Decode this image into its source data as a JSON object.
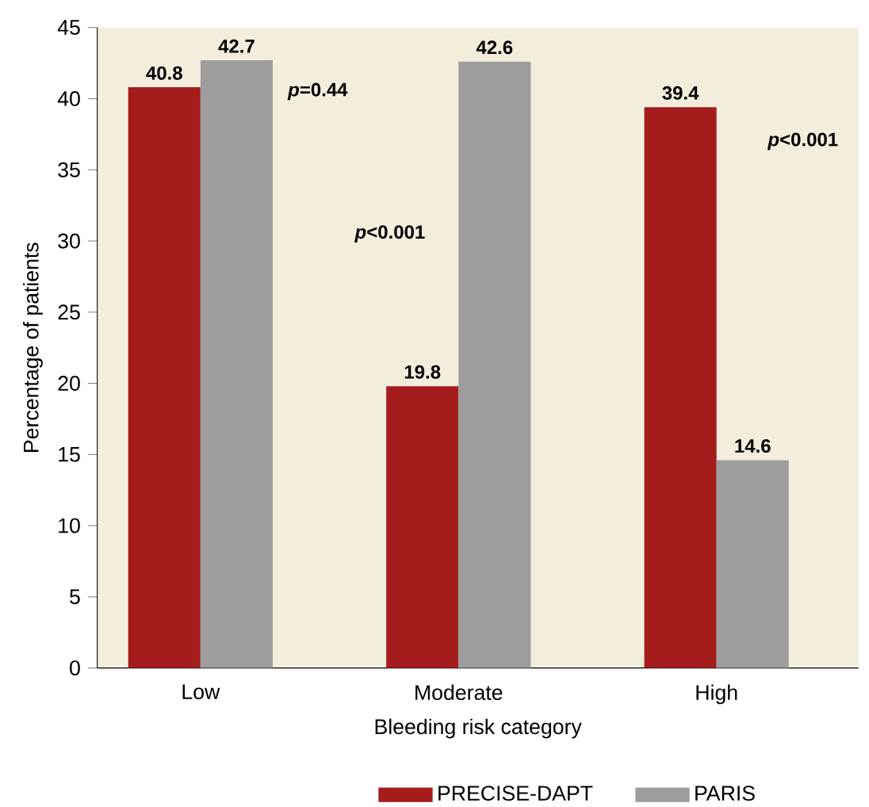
{
  "chart_data": {
    "type": "bar",
    "xlabel": "Bleeding risk category",
    "ylabel": "Percentage of patients",
    "categories": [
      "Low",
      "Moderate",
      "High"
    ],
    "series": [
      {
        "name": "PRECISE-DAPT",
        "color": "#a51c1c",
        "values": [
          40.8,
          19.8,
          39.4
        ]
      },
      {
        "name": "PARIS",
        "color": "#9d9d9d",
        "values": [
          42.7,
          42.6,
          14.6
        ]
      }
    ],
    "ylim": [
      0,
      45
    ],
    "yticks": [
      0,
      5,
      10,
      15,
      20,
      25,
      30,
      35,
      40,
      45
    ],
    "data_labels": true,
    "legend": "bottom",
    "grid": false,
    "annotations": [
      "*p*=0.44",
      "*p*<0.001",
      "*p*<0.001"
    ]
  }
}
